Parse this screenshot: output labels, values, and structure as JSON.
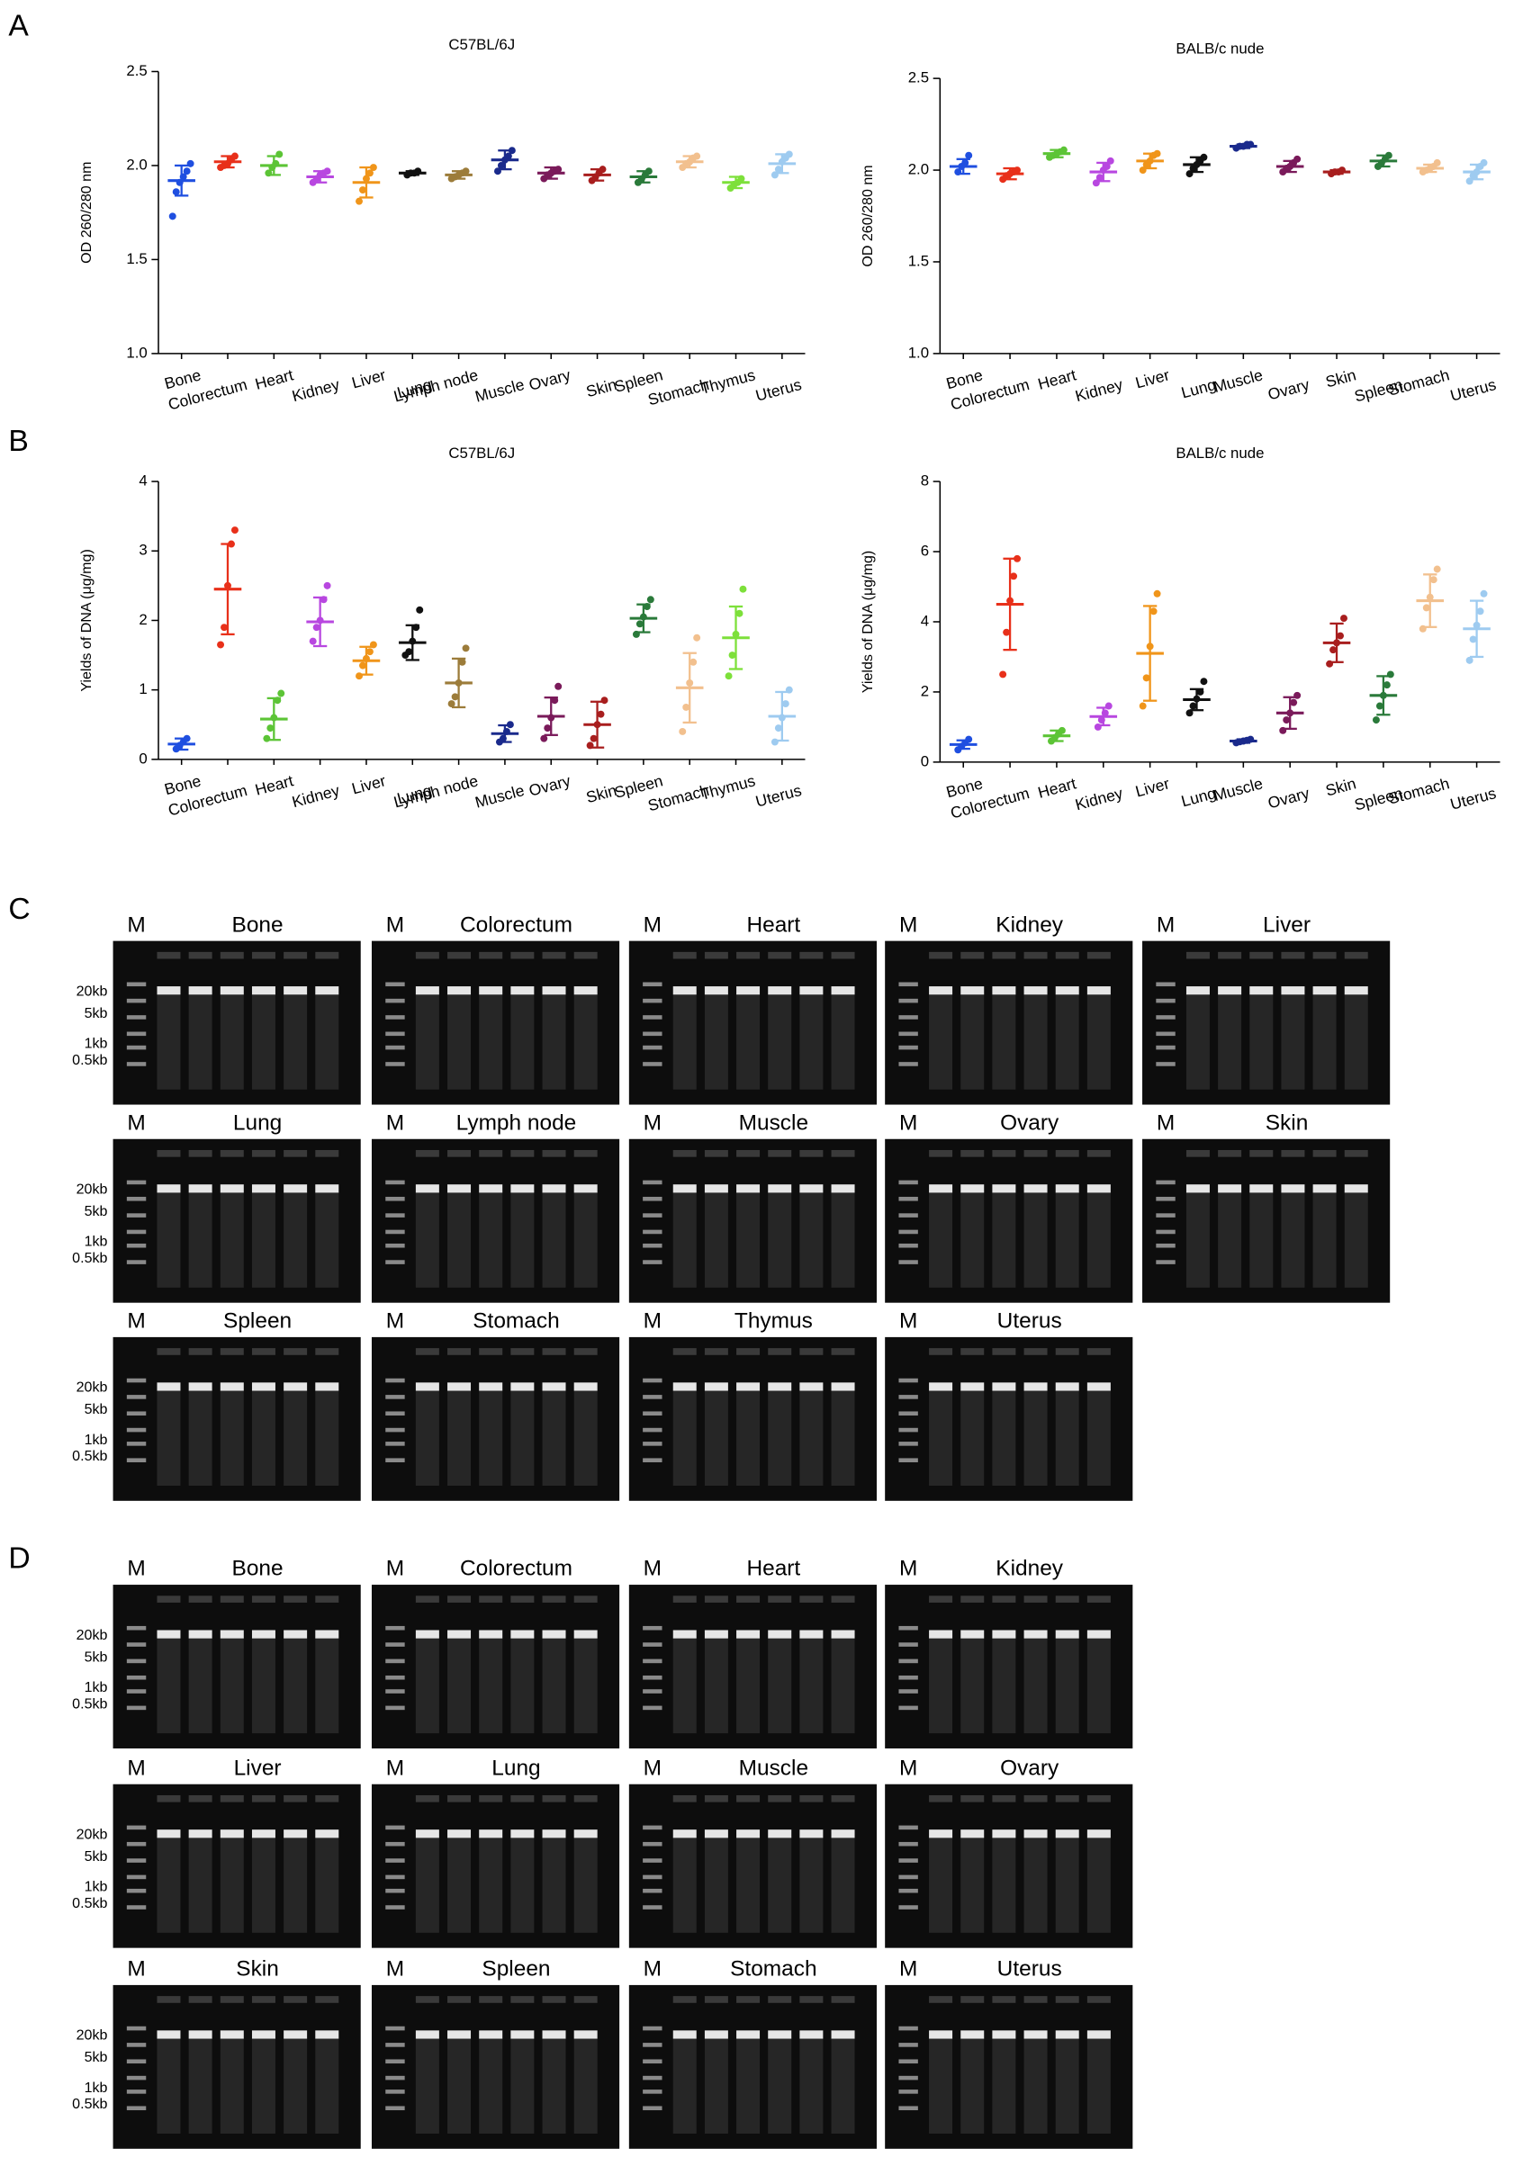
{
  "panel_labels": [
    "A",
    "B",
    "C",
    "D"
  ],
  "chart_data": [
    {
      "type": "scatter",
      "title": "C57BL/6J",
      "y_label": "OD 260/280 nm",
      "categories": [
        "Bone",
        "Colorectum",
        "Heart",
        "Kidney",
        "Liver",
        "Lung",
        "Lymph node",
        "Muscle",
        "Ovary",
        "Skin",
        "Spleen",
        "Stomach",
        "Thymus",
        "Uterus"
      ],
      "colors": [
        "#1f4fe0",
        "#e8301a",
        "#5cc436",
        "#b847e0",
        "#f0951a",
        "#111111",
        "#9c7c3a",
        "#1a2a8c",
        "#7a1a5a",
        "#a81e1e",
        "#2a7a3a",
        "#f2c08e",
        "#7de03a",
        "#9ecbf0"
      ],
      "means": [
        1.92,
        2.02,
        2.0,
        1.94,
        1.91,
        1.96,
        1.95,
        2.03,
        1.96,
        1.95,
        1.94,
        2.02,
        1.91,
        2.01
      ],
      "sds": [
        0.08,
        0.03,
        0.05,
        0.03,
        0.08,
        0.01,
        0.02,
        0.05,
        0.03,
        0.03,
        0.03,
        0.03,
        0.03,
        0.05
      ],
      "points": [
        [
          1.73,
          1.86,
          1.91,
          1.94,
          1.97,
          2.01
        ],
        [
          1.99,
          2.0,
          2.01,
          2.03,
          2.05
        ],
        [
          1.96,
          1.99,
          2.01,
          2.06
        ],
        [
          1.91,
          1.93,
          1.95,
          1.96,
          1.97
        ],
        [
          1.81,
          1.87,
          1.93,
          1.96,
          1.99
        ],
        [
          1.95,
          1.96,
          1.96,
          1.97
        ],
        [
          1.93,
          1.94,
          1.95,
          1.96,
          1.97
        ],
        [
          1.97,
          2.0,
          2.03,
          2.05,
          2.08
        ],
        [
          1.93,
          1.95,
          1.96,
          1.97,
          1.98
        ],
        [
          1.92,
          1.94,
          1.96,
          1.98
        ],
        [
          1.91,
          1.93,
          1.95,
          1.97
        ],
        [
          1.99,
          2.01,
          2.02,
          2.04,
          2.05
        ],
        [
          1.88,
          1.9,
          1.91,
          1.93
        ],
        [
          1.95,
          1.98,
          2.02,
          2.04,
          2.06
        ]
      ],
      "ylim": [
        1,
        2.5
      ],
      "yticks": [
        {
          "value": 1,
          "label": "1.0"
        },
        {
          "value": 1.5,
          "label": "1.5"
        },
        {
          "value": 2,
          "label": "2.0"
        },
        {
          "value": 2.5,
          "label": "2.5"
        }
      ]
    },
    {
      "type": "scatter",
      "title": "BALB/c nude",
      "y_label": "OD 260/280 nm",
      "categories": [
        "Bone",
        "Colorectum",
        "Heart",
        "Kidney",
        "Liver",
        "Lung",
        "Muscle",
        "Ovary",
        "Skin",
        "Spleen",
        "Stomach",
        "Uterus"
      ],
      "colors": [
        "#1f4fe0",
        "#e8301a",
        "#5cc436",
        "#b847e0",
        "#f0951a",
        "#111111",
        "#1a2a8c",
        "#7a1a5a",
        "#a81e1e",
        "#2a7a3a",
        "#f2c08e",
        "#9ecbf0"
      ],
      "means": [
        2.02,
        1.98,
        2.09,
        1.99,
        2.05,
        2.03,
        2.13,
        2.02,
        1.99,
        2.05,
        2.01,
        1.99
      ],
      "sds": [
        0.04,
        0.03,
        0.02,
        0.05,
        0.04,
        0.04,
        0.01,
        0.03,
        0.01,
        0.03,
        0.02,
        0.04
      ],
      "points": [
        [
          1.99,
          2.02,
          2.04,
          2.08
        ],
        [
          1.95,
          1.97,
          1.98,
          1.99,
          2.0
        ],
        [
          2.07,
          2.08,
          2.09,
          2.1,
          2.11
        ],
        [
          1.93,
          1.96,
          2.0,
          2.02,
          2.05
        ],
        [
          2.0,
          2.03,
          2.05,
          2.08,
          2.09
        ],
        [
          1.98,
          2.01,
          2.03,
          2.05,
          2.07
        ],
        [
          2.12,
          2.13,
          2.13,
          2.14,
          2.14
        ],
        [
          1.99,
          2.01,
          2.02,
          2.04,
          2.06
        ],
        [
          1.98,
          1.99,
          1.99,
          2.0
        ],
        [
          2.02,
          2.04,
          2.06,
          2.08
        ],
        [
          1.99,
          2.0,
          2.01,
          2.02,
          2.04
        ],
        [
          1.94,
          1.97,
          1.99,
          2.02,
          2.04
        ]
      ],
      "ylim": [
        1,
        2.5
      ],
      "yticks": [
        {
          "value": 1,
          "label": "1.0"
        },
        {
          "value": 1.5,
          "label": "1.5"
        },
        {
          "value": 2,
          "label": "2.0"
        },
        {
          "value": 2.5,
          "label": "2.5"
        }
      ]
    },
    {
      "type": "scatter",
      "title": "C57BL/6J",
      "y_label": "Yields of DNA (μg/mg)",
      "categories": [
        "Bone",
        "Colorectum",
        "Heart",
        "Kidney",
        "Liver",
        "Lung",
        "Lymph node",
        "Muscle",
        "Ovary",
        "Skin",
        "Spleen",
        "Stomach",
        "Thymus",
        "Uterus"
      ],
      "colors": [
        "#1f4fe0",
        "#e8301a",
        "#5cc436",
        "#b847e0",
        "#f0951a",
        "#111111",
        "#9c7c3a",
        "#1a2a8c",
        "#7a1a5a",
        "#a81e1e",
        "#2a7a3a",
        "#f2c08e",
        "#7de03a",
        "#9ecbf0"
      ],
      "means": [
        0.22,
        2.45,
        0.58,
        1.98,
        1.42,
        1.68,
        1.1,
        0.37,
        0.62,
        0.5,
        2.03,
        1.03,
        1.75,
        0.62
      ],
      "sds": [
        0.08,
        0.65,
        0.3,
        0.35,
        0.2,
        0.25,
        0.35,
        0.12,
        0.27,
        0.33,
        0.2,
        0.5,
        0.45,
        0.35
      ],
      "points": [
        [
          0.15,
          0.2,
          0.25,
          0.3
        ],
        [
          1.65,
          1.9,
          2.5,
          3.1,
          3.3
        ],
        [
          0.3,
          0.45,
          0.6,
          0.85,
          0.95
        ],
        [
          1.7,
          1.9,
          2.0,
          2.3,
          2.5
        ],
        [
          1.2,
          1.35,
          1.45,
          1.55,
          1.65
        ],
        [
          1.5,
          1.55,
          1.7,
          1.9,
          2.15
        ],
        [
          0.8,
          0.9,
          1.1,
          1.4,
          1.6
        ],
        [
          0.25,
          0.3,
          0.4,
          0.5
        ],
        [
          0.3,
          0.45,
          0.6,
          0.85,
          1.05
        ],
        [
          0.2,
          0.3,
          0.5,
          0.65,
          0.85
        ],
        [
          1.8,
          1.95,
          2.05,
          2.2,
          2.3
        ],
        [
          0.4,
          0.75,
          1.1,
          1.4,
          1.75
        ],
        [
          1.2,
          1.5,
          1.8,
          2.1,
          2.45
        ],
        [
          0.25,
          0.45,
          0.6,
          0.8,
          1.0
        ]
      ],
      "ylim": [
        0,
        4
      ],
      "yticks": [
        0,
        1,
        2,
        3,
        4
      ]
    },
    {
      "type": "scatter",
      "title": "BALB/c nude",
      "y_label": "Yields of DNA (μg/mg)",
      "categories": [
        "Bone",
        "Colorectum",
        "Heart",
        "Kidney",
        "Liver",
        "Lung",
        "Muscle",
        "Ovary",
        "Skin",
        "Spleen",
        "Stomach",
        "Uterus"
      ],
      "colors": [
        "#1f4fe0",
        "#e8301a",
        "#5cc436",
        "#b847e0",
        "#f0951a",
        "#111111",
        "#1a2a8c",
        "#7a1a5a",
        "#a81e1e",
        "#2a7a3a",
        "#f2c08e",
        "#9ecbf0"
      ],
      "means": [
        0.5,
        4.5,
        0.75,
        1.3,
        3.1,
        1.78,
        0.6,
        1.4,
        3.4,
        1.9,
        4.6,
        3.8
      ],
      "sds": [
        0.12,
        1.3,
        0.15,
        0.25,
        1.35,
        0.3,
        0.05,
        0.45,
        0.55,
        0.55,
        0.75,
        0.8
      ],
      "points": [
        [
          0.35,
          0.45,
          0.55,
          0.65
        ],
        [
          2.5,
          3.7,
          4.6,
          5.3,
          5.8
        ],
        [
          0.6,
          0.7,
          0.8,
          0.9
        ],
        [
          1.0,
          1.2,
          1.4,
          1.6
        ],
        [
          1.6,
          2.4,
          3.3,
          4.3,
          4.8
        ],
        [
          1.4,
          1.6,
          1.8,
          2.0,
          2.3
        ],
        [
          0.55,
          0.58,
          0.6,
          0.62,
          0.65
        ],
        [
          0.9,
          1.2,
          1.4,
          1.7,
          1.9
        ],
        [
          2.8,
          3.2,
          3.4,
          3.6,
          4.1
        ],
        [
          1.2,
          1.6,
          1.9,
          2.2,
          2.5
        ],
        [
          3.8,
          4.4,
          4.7,
          5.2,
          5.5
        ],
        [
          2.9,
          3.5,
          3.9,
          4.3,
          4.8
        ]
      ],
      "ylim": [
        0,
        8
      ],
      "yticks": [
        0,
        2,
        4,
        6,
        8
      ]
    }
  ],
  "gels": [
    {
      "marker": "M",
      "ladder_labels": [
        "20kb",
        "5kb",
        "1kb",
        "0.5kb"
      ],
      "rows": [
        [
          "Bone",
          "Colorectum",
          "Heart",
          "Kidney",
          "Liver"
        ],
        [
          "Lung",
          "Lymph node",
          "Muscle",
          "Ovary",
          "Skin"
        ],
        [
          "Spleen",
          "Stomach",
          "Thymus",
          "Uterus"
        ]
      ]
    },
    {
      "marker": "M",
      "ladder_labels": [
        "20kb",
        "5kb",
        "1kb",
        "0.5kb"
      ],
      "rows": [
        [
          "Bone",
          "Colorectum",
          "Heart",
          "Kidney"
        ],
        [
          "Liver",
          "Lung",
          "Muscle",
          "Ovary"
        ],
        [
          "Skin",
          "Spleen",
          "Stomach",
          "Uterus"
        ]
      ]
    }
  ]
}
